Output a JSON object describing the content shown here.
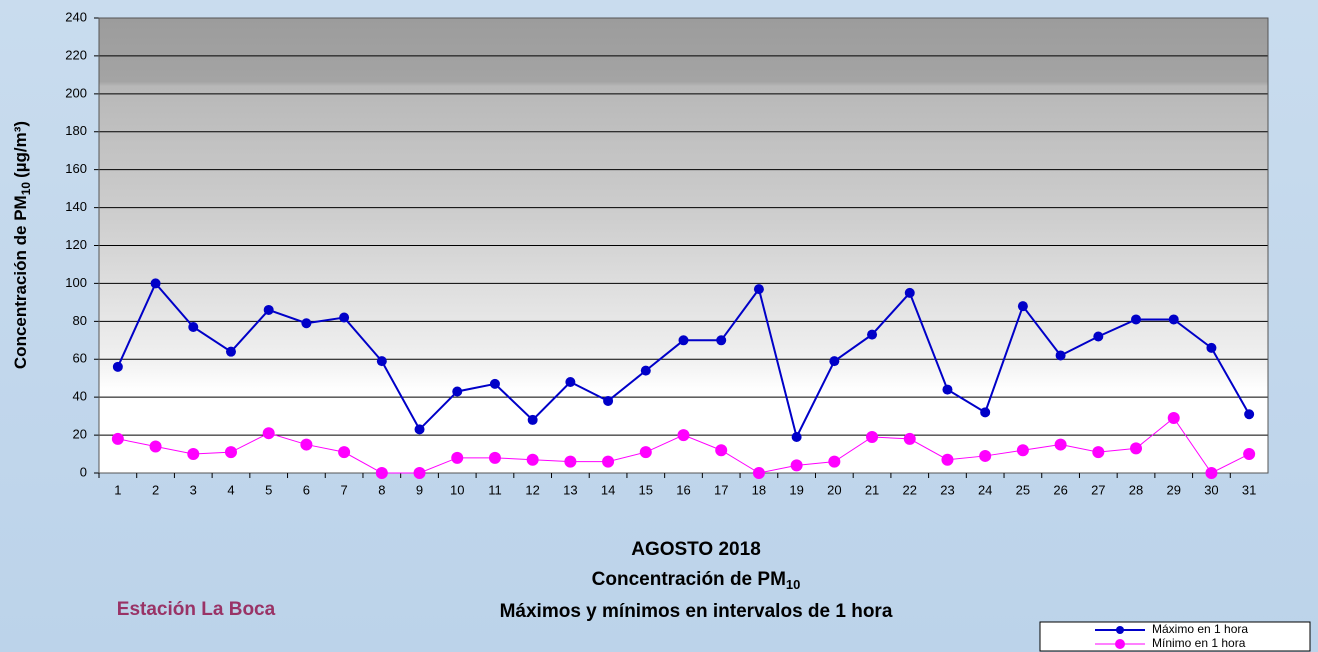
{
  "chart_data": {
    "type": "line",
    "title": [
      "AGOSTO 2018",
      {
        "text": "Concentración de PM",
        "subscript": "10"
      },
      "Máximos y mínimos en intervalos de 1 hora"
    ],
    "station": "Estación La Boca",
    "ylabel": {
      "text": "Concentración de PM",
      "subscript": "10",
      "suffix": "(µg/m³)"
    },
    "categories": [
      "1",
      "2",
      "3",
      "4",
      "5",
      "6",
      "7",
      "8",
      "9",
      "10",
      "11",
      "12",
      "13",
      "14",
      "15",
      "16",
      "17",
      "18",
      "19",
      "20",
      "21",
      "22",
      "23",
      "24",
      "25",
      "26",
      "27",
      "28",
      "29",
      "30",
      "31"
    ],
    "series": [
      {
        "name": "Máximo en 1 hora",
        "color": "#0000c8",
        "values": [
          56,
          100,
          77,
          64,
          86,
          79,
          82,
          59,
          23,
          43,
          47,
          28,
          48,
          38,
          54,
          70,
          70,
          97,
          19,
          59,
          73,
          95,
          44,
          32,
          88,
          62,
          72,
          81,
          81,
          66,
          31
        ]
      },
      {
        "name": "Mínimo en 1 hora",
        "color": "#ff00ff",
        "values": [
          18,
          14,
          10,
          11,
          21,
          15,
          11,
          0,
          0,
          8,
          8,
          7,
          6,
          6,
          11,
          20,
          12,
          0,
          4,
          6,
          19,
          18,
          7,
          9,
          12,
          15,
          11,
          13,
          29,
          0,
          10
        ]
      }
    ],
    "ylim": [
      0,
      240
    ],
    "yticks": [
      0,
      20,
      40,
      60,
      80,
      100,
      120,
      140,
      160,
      180,
      200,
      220,
      240
    ],
    "grid": true,
    "legend": "bottom-right"
  }
}
